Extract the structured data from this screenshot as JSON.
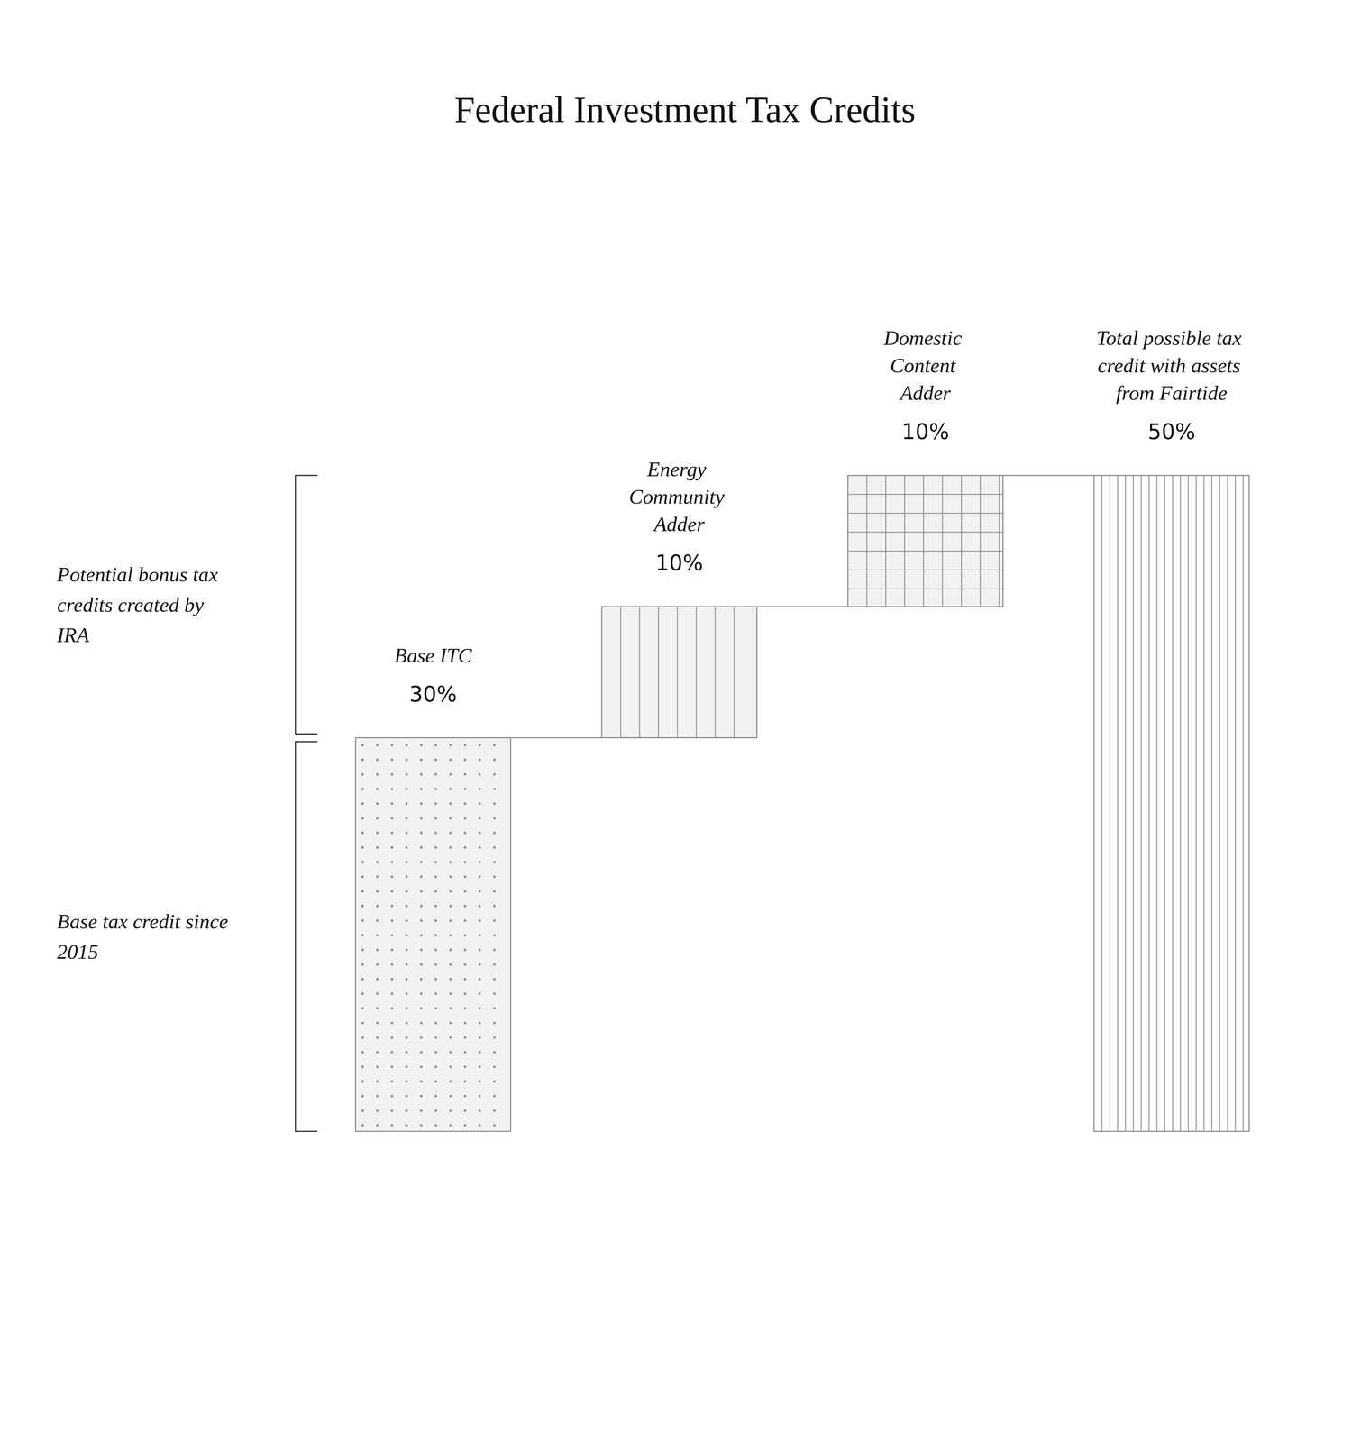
{
  "chart_data": {
    "type": "waterfall",
    "title": "Federal Investment Tax Credits",
    "categories": [
      "Base ITC",
      "Energy Community Adder",
      "Domestic Content Adder",
      "Total possible tax credit with assets from Fairtide"
    ],
    "values": [
      30,
      10,
      10,
      50
    ],
    "value_labels": [
      "30%",
      "10%",
      "10%",
      "50%"
    ],
    "data_labels": true,
    "tick_labels": false,
    "grid": false,
    "ylim": [
      0,
      50
    ],
    "annotations": [
      {
        "text": "Potential bonus tax credits created by IRA",
        "from": 30,
        "to": 50
      },
      {
        "text": "Base tax credit since 2015",
        "from": 0,
        "to": 30
      }
    ]
  }
}
